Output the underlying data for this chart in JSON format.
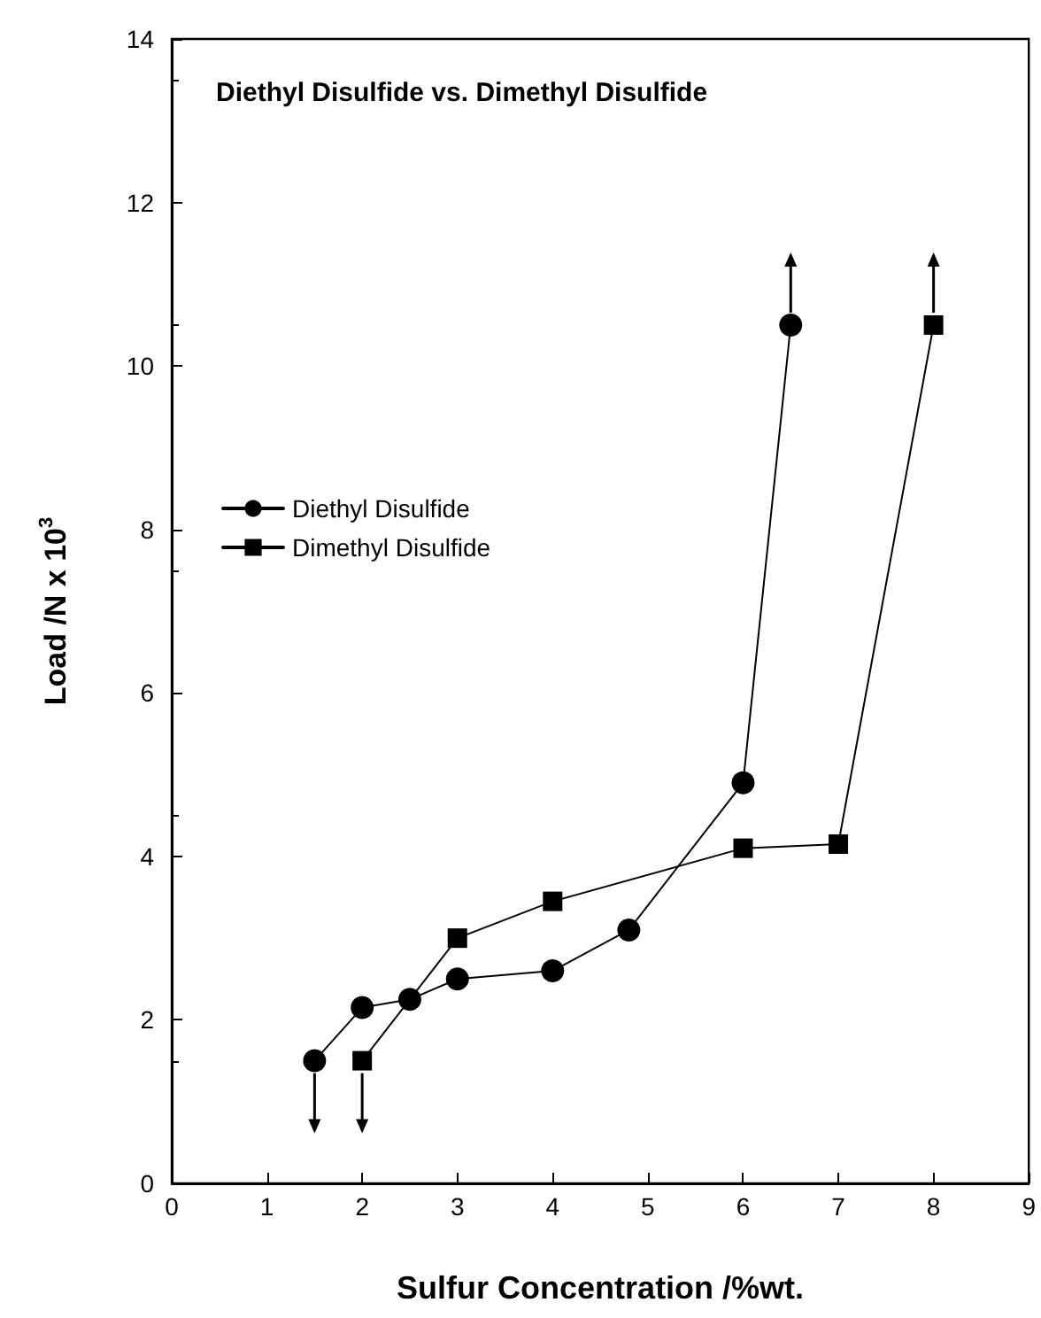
{
  "chart_data": {
    "type": "line",
    "title": "Diethyl Disulfide vs. Dimethyl Disulfide",
    "xlabel": "Sulfur Concentration /%wt.",
    "ylabel": "Load /N x 10$^{3}$",
    "series": [
      {
        "name": "Diethyl Disulfide",
        "color": "#000000",
        "marker": "circle",
        "x": [
          1.5,
          2,
          2.5,
          3,
          4,
          4.8,
          6,
          6.5
        ],
        "values": [
          1.5,
          2.15,
          2.25,
          2.5,
          2.6,
          3.1,
          4.9,
          10.5
        ]
      },
      {
        "name": "Dimethyl Disulfide",
        "color": "#000000",
        "marker": "square",
        "x": [
          2,
          3,
          4,
          6,
          7,
          8
        ],
        "values": [
          1.5,
          3.0,
          3.45,
          4.1,
          4.15,
          10.5
        ]
      }
    ],
    "xlim": [
      0,
      9
    ],
    "xticks": [
      0,
      1,
      2,
      3,
      4,
      5,
      6,
      7,
      8,
      9
    ],
    "ylim": [
      0,
      14
    ],
    "yticks": [
      0,
      2,
      4,
      6,
      8,
      10,
      12,
      14
    ],
    "grid": false,
    "legend": "left",
    "line_style": "solid"
  }
}
